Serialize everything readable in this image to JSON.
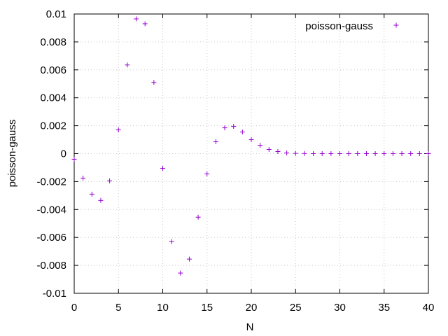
{
  "chart_data": {
    "type": "scatter",
    "title": "",
    "xlabel": "N",
    "ylabel": "poisson-gauss",
    "xlim": [
      0,
      40
    ],
    "ylim": [
      -0.01,
      0.01
    ],
    "x_ticks": [
      0,
      5,
      10,
      15,
      20,
      25,
      30,
      35,
      40
    ],
    "x_tick_labels": [
      "0",
      "5",
      "10",
      "15",
      "20",
      "25",
      "30",
      "35",
      "40"
    ],
    "y_ticks": [
      -0.01,
      -0.008,
      -0.006,
      -0.004,
      -0.002,
      0,
      0.002,
      0.004,
      0.006,
      0.008,
      0.01
    ],
    "y_tick_labels": [
      "-0.01",
      "-0.008",
      "-0.006",
      "-0.004",
      "-0.002",
      "0",
      "0.002",
      "0.004",
      "0.006",
      "0.008",
      "0.01"
    ],
    "grid": true,
    "legend_position": "top-right",
    "marker": "plus",
    "color": "#9400d3",
    "series": [
      {
        "name": "poisson-gauss",
        "x": [
          0,
          1,
          2,
          3,
          4,
          5,
          6,
          7,
          8,
          9,
          10,
          11,
          12,
          13,
          14,
          15,
          16,
          17,
          18,
          19,
          20,
          21,
          22,
          23,
          24,
          25,
          26,
          27,
          28,
          29,
          30,
          31,
          32,
          33,
          34,
          35,
          36,
          37,
          38,
          39,
          40
        ],
        "y": [
          -0.0004,
          -0.00175,
          -0.0029,
          -0.00335,
          -0.00195,
          0.0017,
          0.00635,
          0.00965,
          0.0093,
          0.0051,
          -0.00105,
          -0.0063,
          -0.00855,
          -0.00755,
          -0.00455,
          -0.00145,
          0.00085,
          0.00185,
          0.00195,
          0.00155,
          0.001,
          0.0006,
          0.0003,
          0.00015,
          5e-05,
          2e-05,
          1e-05,
          0.0,
          0.0,
          0.0,
          0.0,
          0.0,
          0.0,
          0.0,
          0.0,
          0.0,
          0.0,
          0.0,
          0.0,
          0.0,
          0.0
        ]
      }
    ]
  }
}
